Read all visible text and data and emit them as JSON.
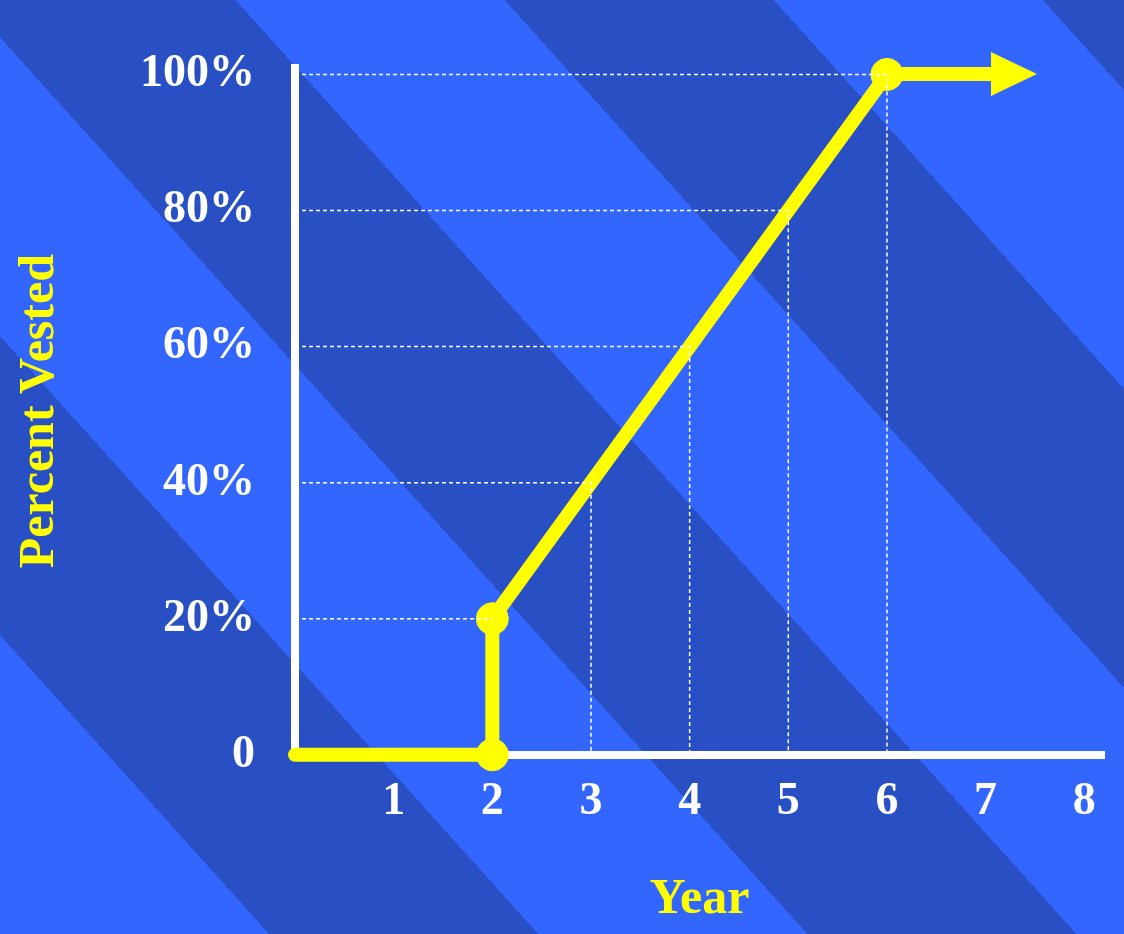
{
  "chart_data": {
    "type": "line",
    "xlabel": "Year",
    "ylabel": "Percent Vested",
    "xlim": [
      0,
      8.2
    ],
    "xticks": [
      1,
      2,
      3,
      4,
      5,
      6,
      7,
      8
    ],
    "ylim": [
      0,
      101
    ],
    "yticks": [
      {
        "value": 0,
        "label": "0"
      },
      {
        "value": 20,
        "label": "20%"
      },
      {
        "value": 40,
        "label": "40%"
      },
      {
        "value": 60,
        "label": "60%"
      },
      {
        "value": 80,
        "label": "80%"
      },
      {
        "value": 100,
        "label": "100%"
      }
    ],
    "legend": false,
    "series": [
      {
        "type": "line",
        "color": "#ffffff",
        "marker": "none",
        "line_style": "dashed",
        "x": [
          0,
          2
        ],
        "values": [
          20,
          20
        ]
      },
      {
        "type": "line",
        "color": "#ffffff",
        "marker": "none",
        "line_style": "dashed",
        "x": [
          0,
          3,
          3
        ],
        "values": [
          40,
          40,
          0
        ]
      },
      {
        "type": "line",
        "color": "#ffffff",
        "marker": "none",
        "line_style": "dashed",
        "x": [
          0,
          4,
          4
        ],
        "values": [
          60,
          60,
          0
        ]
      },
      {
        "type": "line",
        "color": "#ffffff",
        "marker": "none",
        "line_style": "dashed",
        "x": [
          0,
          5,
          5
        ],
        "values": [
          80,
          80,
          0
        ]
      },
      {
        "type": "line",
        "color": "#ffffff",
        "marker": "none",
        "line_style": "dashed",
        "x": [
          0,
          6,
          6
        ],
        "values": [
          100,
          100,
          0
        ]
      },
      {
        "type": "line",
        "color": "#ffff00",
        "marker": "none",
        "line_style": "solid",
        "x": [
          0,
          2,
          2,
          3,
          4,
          5,
          6
        ],
        "values": [
          0,
          0,
          20,
          40,
          60,
          80,
          100
        ]
      },
      {
        "type": "scatter",
        "color": "#ffff00",
        "marker": "circle",
        "x": [
          2,
          2,
          6
        ],
        "values": [
          0,
          20,
          100
        ]
      }
    ]
  }
}
